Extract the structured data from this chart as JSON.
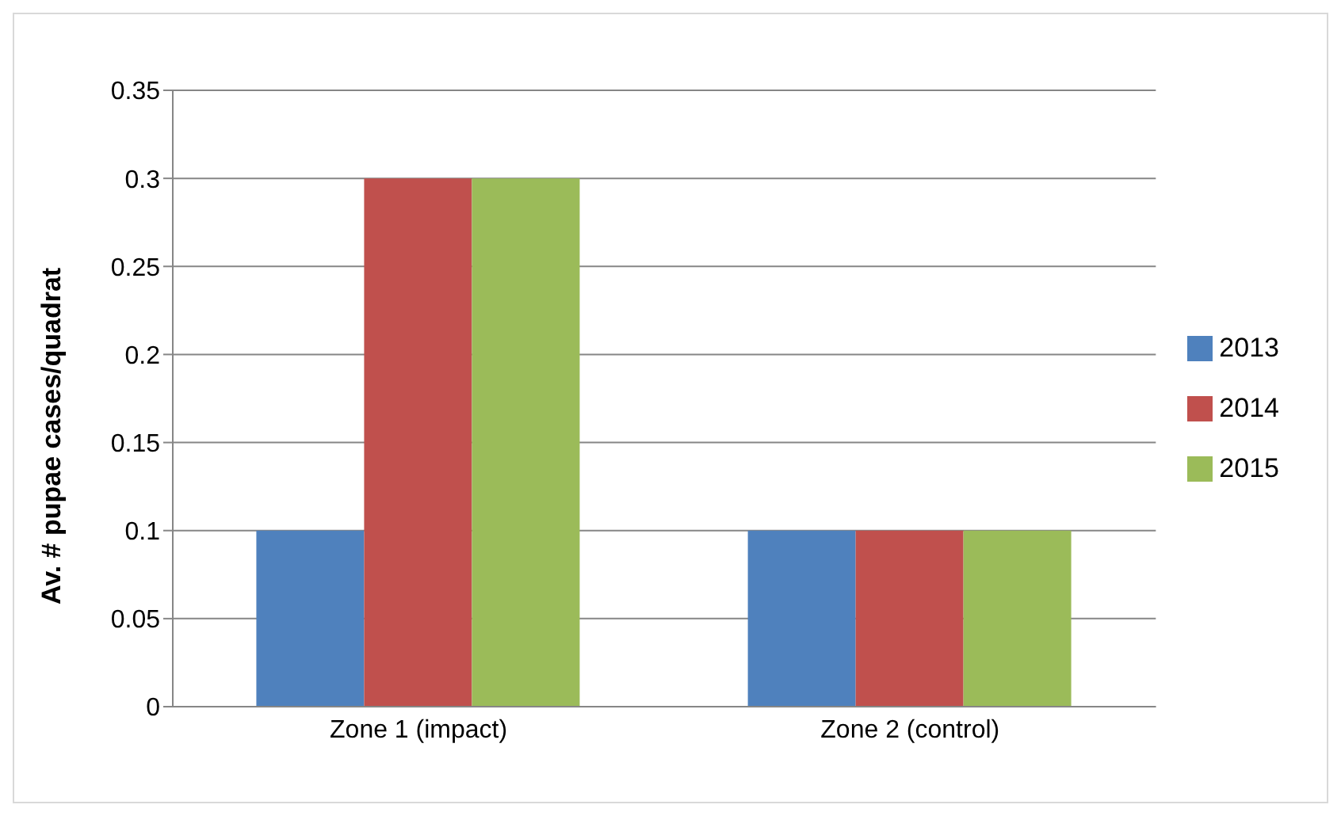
{
  "chart_data": {
    "type": "bar",
    "ylabel": "Av. # pupae cases/quadrat",
    "categories": [
      "Zone 1 (impact)",
      "Zone 2 (control)"
    ],
    "series": [
      {
        "name": "2013",
        "color": "#4f81bd",
        "values": [
          0.1,
          0.1
        ]
      },
      {
        "name": "2014",
        "color": "#c0504d",
        "values": [
          0.3,
          0.1
        ]
      },
      {
        "name": "2015",
        "color": "#9bbb59",
        "values": [
          0.3,
          0.1
        ]
      }
    ],
    "ylim": [
      0,
      0.35
    ],
    "yticks": [
      0,
      0.05,
      0.1,
      0.15,
      0.2,
      0.25,
      0.3,
      0.35
    ],
    "grid": "y",
    "legend": "right"
  }
}
